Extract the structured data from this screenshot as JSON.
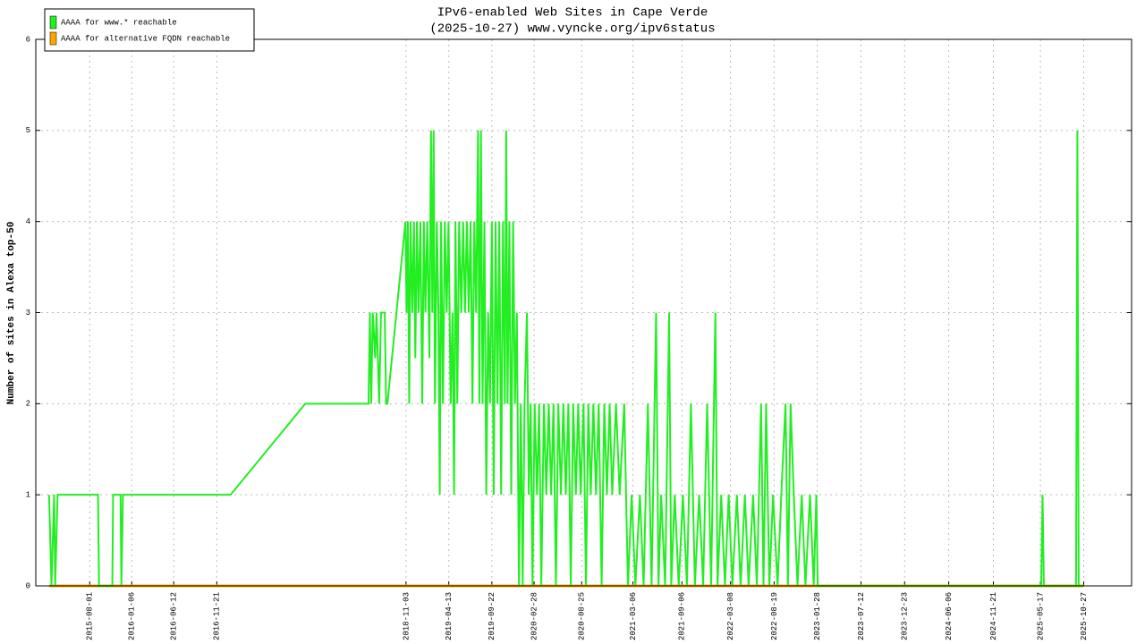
{
  "chart_data": {
    "type": "line",
    "title": "IPv6-enabled Web Sites in Cape Verde",
    "subtitle": "(2025-10-27) www.vyncke.org/ipv6status",
    "y_label": "Number of sites in Alexa top-50",
    "xlim": [
      "2015-01-10",
      "2026-04-25"
    ],
    "ylim": [
      0,
      6
    ],
    "yticks": [
      0,
      1,
      2,
      3,
      4,
      5,
      6
    ],
    "xticks": [
      "2015-08-01",
      "2016-01-06",
      "2016-06-12",
      "2016-11-21",
      "2018-11-03",
      "2019-04-13",
      "2019-09-22",
      "2020-02-28",
      "2020-08-25",
      "2021-03-06",
      "2021-09-06",
      "2022-03-08",
      "2022-08-19",
      "2023-01-28",
      "2023-07-12",
      "2023-12-23",
      "2024-06-06",
      "2024-11-21",
      "2025-05-17",
      "2025-10-27"
    ],
    "grid": true,
    "legend": "top-left",
    "series": [
      {
        "name": "AAAA for www.* reachable",
        "color": "#22ee22",
        "x": [
          "2015-03-01",
          "2015-03-10",
          "2015-03-20",
          "2015-03-24",
          "2015-04-02",
          "2015-04-12",
          "2015-09-01",
          "2015-09-05",
          "2015-10-25",
          "2015-10-28",
          "2015-11-25",
          "2015-11-28",
          "2015-12-04",
          "2017-01-12",
          "2017-10-20",
          "2018-06-15",
          "2018-06-20",
          "2018-06-25",
          "2018-07-01",
          "2018-07-10",
          "2018-07-15",
          "2018-07-25",
          "2018-08-01",
          "2018-08-15",
          "2018-08-20",
          "2018-08-25",
          "2018-11-01",
          "2018-11-05",
          "2018-11-10",
          "2018-11-15",
          "2018-11-20",
          "2018-11-27",
          "2018-12-03",
          "2018-12-08",
          "2018-12-14",
          "2018-12-20",
          "2018-12-27",
          "2019-01-03",
          "2019-01-09",
          "2019-01-15",
          "2019-01-22",
          "2019-01-30",
          "2019-02-05",
          "2019-02-10",
          "2019-02-15",
          "2019-02-20",
          "2019-02-27",
          "2019-03-05",
          "2019-03-10",
          "2019-03-15",
          "2019-03-22",
          "2019-03-29",
          "2019-04-05",
          "2019-04-12",
          "2019-04-20",
          "2019-04-27",
          "2019-05-03",
          "2019-05-08",
          "2019-05-15",
          "2019-05-22",
          "2019-05-30",
          "2019-06-06",
          "2019-06-13",
          "2019-06-20",
          "2019-06-27",
          "2019-07-04",
          "2019-07-11",
          "2019-07-18",
          "2019-07-25",
          "2019-08-01",
          "2019-08-06",
          "2019-08-12",
          "2019-08-18",
          "2019-08-25",
          "2019-09-01",
          "2019-09-08",
          "2019-09-15",
          "2019-09-22",
          "2019-09-29",
          "2019-10-06",
          "2019-10-13",
          "2019-10-20",
          "2019-10-27",
          "2019-11-03",
          "2019-11-10",
          "2019-11-15",
          "2019-11-20",
          "2019-11-27",
          "2019-12-04",
          "2019-12-11",
          "2019-12-18",
          "2019-12-25",
          "2020-01-02",
          "2020-01-09",
          "2020-01-16",
          "2020-01-23",
          "2020-02-01",
          "2020-02-08",
          "2020-02-15",
          "2020-02-22",
          "2020-03-01",
          "2020-03-10",
          "2020-03-18",
          "2020-03-26",
          "2020-04-05",
          "2020-04-14",
          "2020-04-23",
          "2020-05-02",
          "2020-05-11",
          "2020-05-20",
          "2020-05-29",
          "2020-06-08",
          "2020-06-17",
          "2020-06-26",
          "2020-07-06",
          "2020-07-15",
          "2020-07-24",
          "2020-08-03",
          "2020-08-12",
          "2020-08-21",
          "2020-09-01",
          "2020-09-10",
          "2020-09-19",
          "2020-09-28",
          "2020-10-08",
          "2020-10-18",
          "2020-10-28",
          "2020-11-08",
          "2020-11-18",
          "2020-11-28",
          "2020-12-08",
          "2020-12-18",
          "2021-01-01",
          "2021-01-15",
          "2021-02-01",
          "2021-02-15",
          "2021-03-01",
          "2021-03-15",
          "2021-04-01",
          "2021-04-15",
          "2021-05-01",
          "2021-05-15",
          "2021-06-01",
          "2021-06-10",
          "2021-06-20",
          "2021-07-05",
          "2021-07-20",
          "2021-07-28",
          "2021-08-10",
          "2021-08-25",
          "2021-09-10",
          "2021-09-25",
          "2021-10-10",
          "2021-10-25",
          "2021-11-10",
          "2021-11-25",
          "2021-12-10",
          "2021-12-25",
          "2022-01-10",
          "2022-01-18",
          "2022-02-01",
          "2022-02-15",
          "2022-03-01",
          "2022-03-15",
          "2022-04-01",
          "2022-04-15",
          "2022-05-01",
          "2022-05-15",
          "2022-06-01",
          "2022-06-15",
          "2022-07-01",
          "2022-07-10",
          "2022-07-20",
          "2022-08-01",
          "2022-08-15",
          "2022-09-01",
          "2022-09-15",
          "2022-10-01",
          "2022-10-10",
          "2022-10-20",
          "2022-11-01",
          "2022-11-15",
          "2022-12-01",
          "2022-12-15",
          "2023-01-01",
          "2023-01-15",
          "2023-01-25",
          "2023-01-30",
          "2025-05-20",
          "2025-05-25",
          "2025-05-30",
          "2025-09-28",
          "2025-10-03",
          "2025-10-08",
          "2025-10-27"
        ],
        "values": [
          1,
          0,
          1,
          0,
          1,
          1,
          1,
          0,
          0,
          1,
          1,
          0,
          1,
          1,
          2,
          2,
          3,
          2,
          3,
          2.5,
          3,
          2,
          3,
          3,
          2,
          2,
          4,
          3,
          4,
          2,
          4,
          3,
          4,
          2.5,
          4,
          3,
          4,
          2,
          4,
          3,
          4,
          2.5,
          5,
          3,
          5,
          2,
          4,
          3,
          1,
          4,
          2,
          4,
          3,
          4,
          2,
          3,
          1,
          4,
          2,
          4,
          3,
          4,
          3,
          4,
          3,
          4,
          2,
          4,
          3,
          5,
          2,
          5,
          2,
          4,
          1,
          3,
          2,
          4,
          1,
          4,
          2,
          4,
          1,
          4,
          2,
          5,
          2,
          4,
          1,
          4,
          2,
          3,
          0,
          2,
          0,
          2,
          3,
          1,
          2,
          0,
          2,
          1,
          2,
          0,
          2,
          1,
          2,
          1,
          2,
          0,
          2,
          1,
          2,
          1,
          2,
          0,
          2,
          1,
          2,
          1,
          2,
          0,
          2,
          1,
          2,
          1,
          2,
          0,
          2,
          1,
          2,
          1,
          2,
          1,
          2,
          0,
          1,
          0,
          1,
          0,
          2,
          0,
          3,
          0,
          1,
          0,
          3,
          0,
          1,
          0,
          1,
          0,
          2,
          0,
          1,
          0,
          2,
          0,
          3,
          0,
          1,
          0,
          1,
          0,
          1,
          0,
          1,
          0,
          1,
          0,
          2,
          0,
          2,
          0,
          1,
          0,
          1,
          2,
          0,
          2,
          1,
          0,
          1,
          0,
          1,
          0,
          1,
          0,
          0,
          1,
          0,
          0,
          5,
          0,
          0
        ]
      },
      {
        "name": "AAAA for alternative FQDN reachable",
        "color": "#ffa500",
        "x": [
          "2015-03-01",
          "2025-10-27"
        ],
        "values": [
          0,
          0
        ]
      }
    ]
  }
}
